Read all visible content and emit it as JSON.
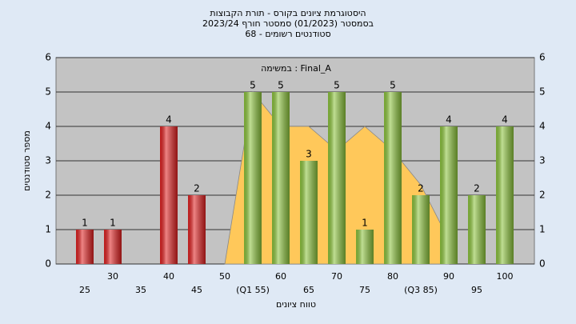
{
  "chart_data": {
    "type": "bar",
    "title": [
      "היסטוגרמת ציונים בקורס - תורת הקבוצות",
      "בסמסטר  (01/2023)  סמסטר חורף 2023/24",
      "סטודנטים רשומים - 68"
    ],
    "subtitle": "במשימה : Final_A",
    "x_label": "טווח ציונים",
    "y_label": "מספר סטודנטים",
    "categories": [
      "25",
      "30",
      "35",
      "40",
      "45",
      "50",
      "(Q1 55)",
      "60",
      "65",
      "70",
      "75",
      "80",
      "(Q3 85)",
      "90",
      "95",
      "100"
    ],
    "series": [
      {
        "values": [
          1,
          1,
          0,
          4,
          2,
          0,
          5,
          5,
          3,
          5,
          1,
          5,
          2,
          4,
          2,
          4
        ],
        "colors": [
          "#e02020",
          "#e02020",
          "#e02020",
          "#e02020",
          "#e02020",
          "#e02020",
          "#8cc43c",
          "#8cc43c",
          "#8cc43c",
          "#8cc43c",
          "#8cc43c",
          "#8cc43c",
          "#8cc43c",
          "#8cc43c",
          "#8cc43c",
          "#8cc43c"
        ]
      },
      {
        "type": "area",
        "color": "#ffc85a",
        "values": [
          null,
          null,
          null,
          null,
          null,
          0,
          5,
          4,
          4,
          3.3,
          4,
          3.3,
          2.3,
          0.7,
          null,
          null
        ]
      }
    ],
    "ylim": [
      0,
      6
    ],
    "yticks": [
      0,
      1,
      2,
      3,
      4,
      5,
      6
    ],
    "grid": true
  }
}
